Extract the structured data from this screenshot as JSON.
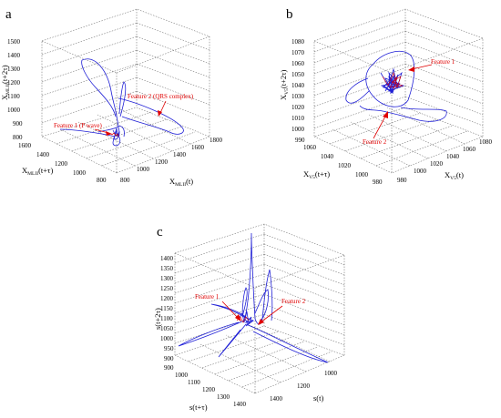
{
  "figure": {
    "panels": [
      {
        "label": "a",
        "x_axis": {
          "label": "X",
          "sub": "MLII",
          "suffix": "(t)",
          "ticks": [
            "800",
            "1000",
            "1200",
            "1400",
            "1600",
            "1800"
          ]
        },
        "y_axis": {
          "label": "X",
          "sub": "MLII",
          "suffix": "(t+τ)",
          "ticks": [
            "800",
            "1000",
            "1200",
            "1400",
            "1600"
          ]
        },
        "z_axis": {
          "label": "X",
          "sub": "MLII",
          "suffix": "(t+2τ)",
          "ticks": [
            "800",
            "900",
            "1000",
            "1100",
            "1200",
            "1300",
            "1400",
            "1500"
          ]
        },
        "annotations": [
          "Feature 2 (QRS complex)",
          "Feature 1 (P wave)"
        ]
      },
      {
        "label": "b",
        "x_axis": {
          "label": "X",
          "sub": "V5",
          "suffix": "(t)",
          "ticks": [
            "980",
            "1000",
            "1020",
            "1040",
            "1060",
            "1080"
          ]
        },
        "y_axis": {
          "label": "X",
          "sub": "V5",
          "suffix": "(t+τ)",
          "ticks": [
            "980",
            "1000",
            "1020",
            "1040",
            "1060"
          ]
        },
        "z_axis": {
          "label": "X",
          "sub": "V5",
          "suffix": "(t+2τ)",
          "ticks": [
            "990",
            "1000",
            "1010",
            "1020",
            "1030",
            "1040",
            "1050",
            "1060",
            "1070",
            "1080"
          ]
        },
        "annotations": [
          "Feature 1",
          "Feature 2"
        ]
      },
      {
        "label": "c",
        "x_axis": {
          "label": "s(t)",
          "ticks": [
            "1000",
            "1200",
            "1400"
          ]
        },
        "y_axis": {
          "label": "s(t+τ)",
          "ticks": [
            "900",
            "1000",
            "1100",
            "1200",
            "1300",
            "1400"
          ]
        },
        "z_axis": {
          "label": "s(t+2τ)",
          "ticks": [
            "900",
            "950",
            "1000",
            "1050",
            "1100",
            "1150",
            "1200",
            "1250",
            "1300",
            "1350",
            "1400"
          ]
        },
        "annotations": [
          "Feature 1",
          "Feature 2"
        ]
      }
    ]
  },
  "chart_data": [
    {
      "type": "line",
      "subtype": "3d-phase-space",
      "title": "a",
      "xlabel": "XMLII(t)",
      "ylabel": "XMLII(t+τ)",
      "zlabel": "XMLII(t+2τ)",
      "xlim": [
        800,
        1800
      ],
      "ylim": [
        800,
        1600
      ],
      "zlim": [
        800,
        1500
      ],
      "grid": true,
      "color": "#1f1fd6",
      "annotation_color": "#e00000",
      "series": [
        {
          "x": [
            1000,
            1050,
            1200,
            1500,
            1700,
            1600,
            1350,
            1100,
            1000,
            990,
            980,
            960,
            950,
            1000
          ],
          "y": [
            1000,
            1050,
            1200,
            1500,
            1600,
            1550,
            1300,
            1100,
            1000,
            990,
            985,
            975,
            960,
            1000
          ],
          "z": [
            1000,
            1100,
            1250,
            1350,
            1450,
            1300,
            1150,
            1050,
            1000,
            960,
            940,
            900,
            880,
            1000
          ]
        }
      ]
    },
    {
      "type": "line",
      "subtype": "3d-phase-space",
      "title": "b",
      "xlabel": "XV5(t)",
      "ylabel": "XV5(t+τ)",
      "zlabel": "XV5(t+2τ)",
      "xlim": [
        980,
        1080
      ],
      "ylim": [
        980,
        1060
      ],
      "zlim": [
        990,
        1080
      ],
      "grid": true,
      "color": "#1f1fd6",
      "annotation_color": "#e00000",
      "series": [
        {
          "x": [
            1030,
            1040,
            1050,
            1060,
            1045,
            1020,
            1000,
            990,
            1010,
            1030
          ],
          "y": [
            1030,
            1040,
            1045,
            1050,
            1035,
            1010,
            995,
            990,
            1005,
            1030
          ],
          "z": [
            1045,
            1055,
            1060,
            1040,
            1025,
            1020,
            1015,
            1025,
            1040,
            1045
          ]
        }
      ]
    },
    {
      "type": "line",
      "subtype": "3d-phase-space",
      "title": "c",
      "xlabel": "s(t)",
      "ylabel": "s(t+τ)",
      "zlabel": "s(t+2τ)",
      "xlim": [
        900,
        1450
      ],
      "ylim": [
        900,
        1400
      ],
      "zlim": [
        900,
        1400
      ],
      "grid": true,
      "color": "#1f1fd6",
      "annotation_color": "#e00000",
      "series": [
        {
          "x": [
            1050,
            1100,
            1300,
            1400,
            1200,
            1000,
            950,
            1050,
            1060,
            1055,
            1050
          ],
          "y": [
            1050,
            1100,
            1200,
            1400,
            1350,
            1100,
            950,
            1000,
            1040,
            1060,
            1050
          ],
          "z": [
            1050,
            1100,
            1400,
            1200,
            1000,
            960,
            1000,
            1100,
            1300,
            1150,
            1050
          ]
        }
      ]
    }
  ]
}
